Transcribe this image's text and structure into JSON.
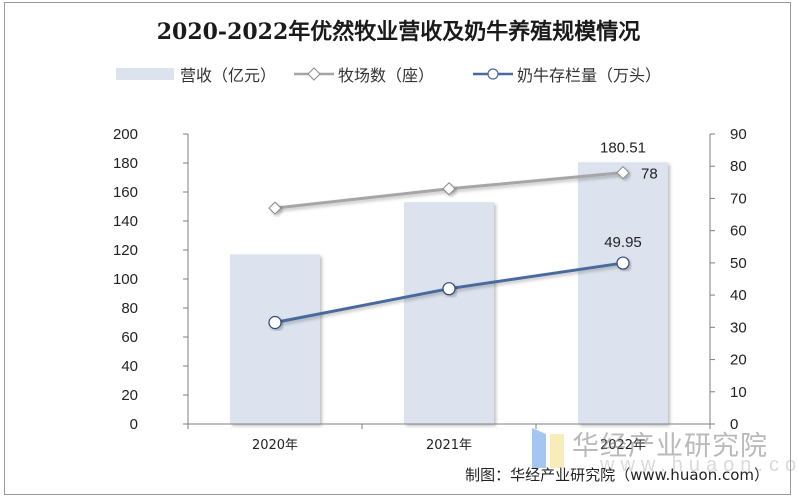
{
  "title": "2020-2022年优然牧业营收及奶牛养殖规模情况",
  "legend": [
    {
      "label": "营收（亿元）",
      "type": "bar",
      "icon": "bar-swatch-icon"
    },
    {
      "label": "牧场数（座）",
      "type": "line",
      "icon": "diamond-line-icon"
    },
    {
      "label": "奶牛存栏量（万头）",
      "type": "line",
      "icon": "circle-line-icon"
    }
  ],
  "source": "制图：华经产业研究院（www.huaon.com）",
  "watermark": {
    "name": "华经产业研究院",
    "url": "www.huaon.com"
  },
  "colors": {
    "bar": "#dce3ee",
    "farms_line": "#a6a6a6",
    "cattle_line": "#4a6a9c",
    "axis": "#7f7f7f"
  },
  "chart_data": {
    "type": "bar",
    "title": "2020-2022年优然牧业营收及奶牛养殖规模情况",
    "categories": [
      "2020年",
      "2021年",
      "2022年"
    ],
    "series": [
      {
        "name": "营收（亿元）",
        "type": "bar",
        "axis": "left",
        "values": [
          117,
          153,
          180.51
        ]
      },
      {
        "name": "牧场数（座）",
        "type": "line",
        "axis": "right",
        "marker": "diamond",
        "values": [
          67,
          73,
          78
        ]
      },
      {
        "name": "奶牛存栏量（万头）",
        "type": "line",
        "axis": "right",
        "marker": "circle",
        "values": [
          31.5,
          42,
          49.95
        ]
      }
    ],
    "data_labels": [
      {
        "series": "营收（亿元）",
        "category": "2022年",
        "text": "180.51"
      },
      {
        "series": "牧场数（座）",
        "category": "2022年",
        "text": "78"
      },
      {
        "series": "奶牛存栏量（万头）",
        "category": "2022年",
        "text": "49.95"
      }
    ],
    "left_axis": {
      "ylim": [
        0,
        200
      ],
      "ticks": [
        "0",
        "20",
        "40",
        "60",
        "80",
        "100",
        "120",
        "140",
        "160",
        "180",
        "200"
      ]
    },
    "right_axis": {
      "ylim": [
        0,
        90
      ],
      "ticks": [
        "0",
        "10",
        "20",
        "30",
        "40",
        "50",
        "60",
        "70",
        "80",
        "90"
      ]
    },
    "xlabel": "",
    "ylabel": "",
    "grid": false,
    "legend_position": "top"
  }
}
